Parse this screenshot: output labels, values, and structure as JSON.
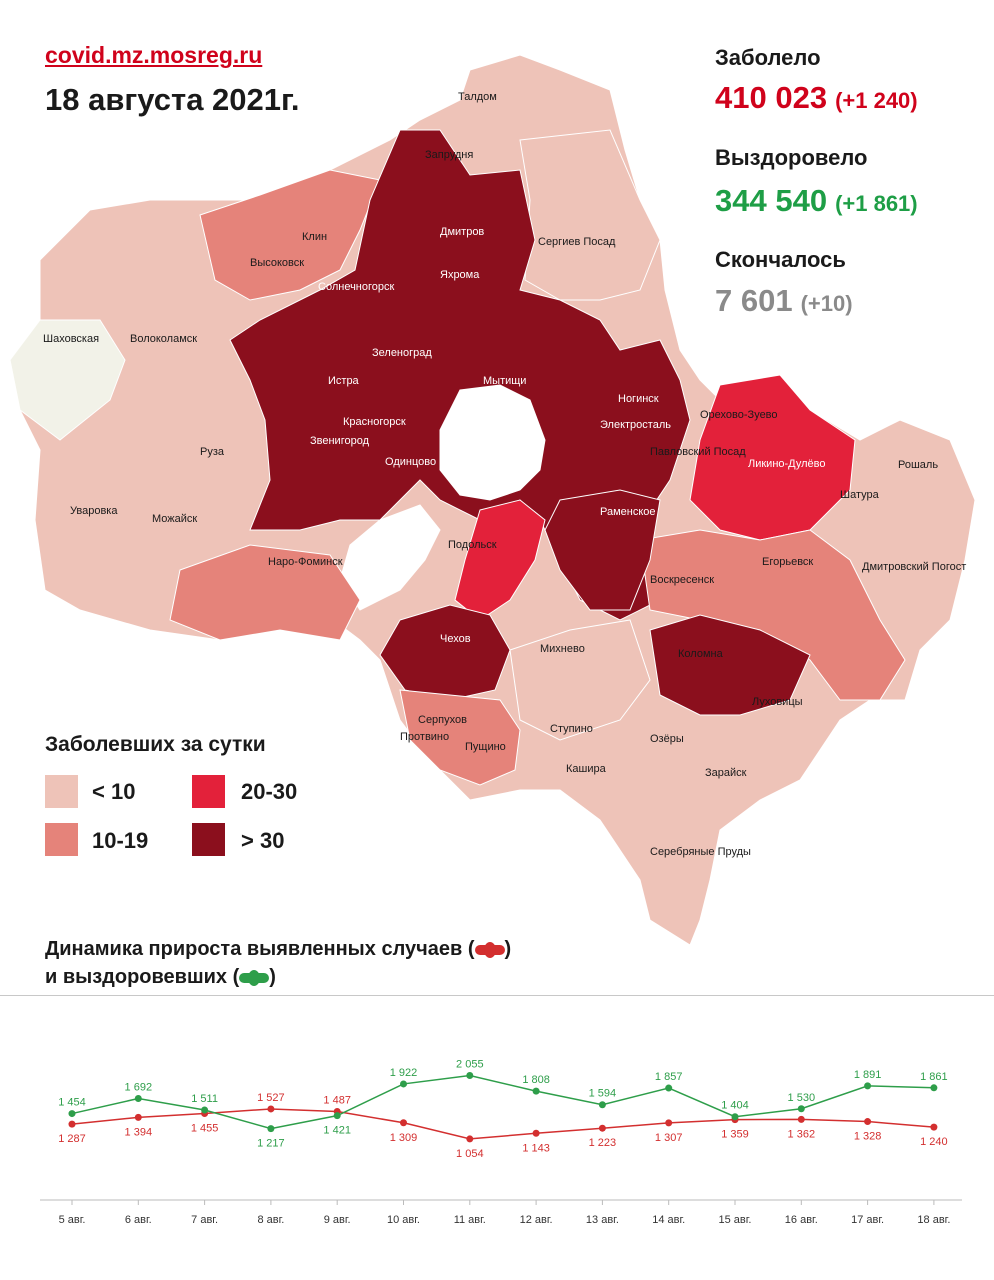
{
  "header": {
    "source": "covid.mz.mosreg.ru",
    "date": "18 августа 2021г."
  },
  "stats": {
    "cases": {
      "label": "Заболело",
      "value": "410 023",
      "delta": "(+1 240)",
      "color": "#d0021b"
    },
    "recovered": {
      "label": "Выздоровело",
      "value": "344 540",
      "delta": "(+1 861)",
      "color": "#1e9e46"
    },
    "deaths": {
      "label": "Скончалось",
      "value": "7 601",
      "delta": "(+10)",
      "color": "#8a8a8a"
    }
  },
  "map": {
    "colors": {
      "lt10": "#eec3b8",
      "r10_19": "#e5837a",
      "r20_30": "#e3213a",
      "gt30": "#8b0f1d",
      "none": "#f2f2e8",
      "moscow": "#ffffff"
    },
    "labels": [
      "Талдом",
      "Запрудня",
      "Дмитров",
      "Яхрома",
      "Клин",
      "Высоковск",
      "Солнечногорск",
      "Сергиев Посад",
      "Шаховская",
      "Волоколамск",
      "Зеленоград",
      "Истра",
      "Мытищи",
      "Красногорск",
      "Звенигород",
      "Одинцово",
      "Ногинск",
      "Электросталь",
      "Павловский Посад",
      "Орехово-Зуево",
      "Ликино-Дулёво",
      "Рошаль",
      "Руза",
      "Уваровка",
      "Можайск",
      "Наро-Фоминск",
      "Подольск",
      "Раменское",
      "Шатура",
      "Егорьевск",
      "Воскресенск",
      "Дмитровский Погост",
      "Чехов",
      "Михнево",
      "Коломна",
      "Серпухов",
      "Протвино",
      "Пущино",
      "Ступино",
      "Луховицы",
      "Озёры",
      "Кашира",
      "Зарайск",
      "Серебряные Пруды"
    ]
  },
  "legend": {
    "title": "Заболевших за сутки",
    "items": [
      {
        "label": "< 10",
        "color": "#eec3b8"
      },
      {
        "label": "10-19",
        "color": "#e5837a"
      },
      {
        "label": "20-30",
        "color": "#e3213a"
      },
      {
        "label": "> 30",
        "color": "#8b0f1d"
      }
    ]
  },
  "chart_title": {
    "line1_prefix": "Динамика прироста выявленных случаев (",
    "line1_suffix": ")",
    "line2_prefix": "и выздоровевших (",
    "line2_suffix": ")"
  },
  "chart_data": {
    "type": "line",
    "categories": [
      "5 авг.",
      "6 авг.",
      "7 авг.",
      "8 авг.",
      "9 авг.",
      "10 авг.",
      "11 авг.",
      "12 авг.",
      "13 авг.",
      "14 авг.",
      "15 авг.",
      "16 авг.",
      "17 авг.",
      "18 авг."
    ],
    "series": [
      {
        "name": "выявленных случаев",
        "color": "#d32f2f",
        "values": [
          1287,
          1394,
          1455,
          1527,
          1487,
          1309,
          1054,
          1143,
          1223,
          1307,
          1359,
          1362,
          1328,
          1240
        ],
        "labels": [
          "1 287",
          "1 394",
          "1 455",
          "1 527",
          "1 487",
          "1 309",
          "1 054",
          "1 143",
          "1 223",
          "1 307",
          "1 359",
          "1 362",
          "1 328",
          "1 240"
        ]
      },
      {
        "name": "выздоровевших",
        "color": "#2e9e4a",
        "values": [
          1454,
          1692,
          1511,
          1217,
          1421,
          1922,
          2055,
          1808,
          1594,
          1857,
          1404,
          1530,
          1891,
          1861
        ],
        "labels": [
          "1 454",
          "1 692",
          "1 511",
          "1 217",
          "1 421",
          "1 922",
          "2 055",
          "1 808",
          "1 594",
          "1 857",
          "1 404",
          "1 530",
          "1 891",
          "1 861"
        ]
      }
    ],
    "ylim": [
      800,
      2300
    ]
  }
}
